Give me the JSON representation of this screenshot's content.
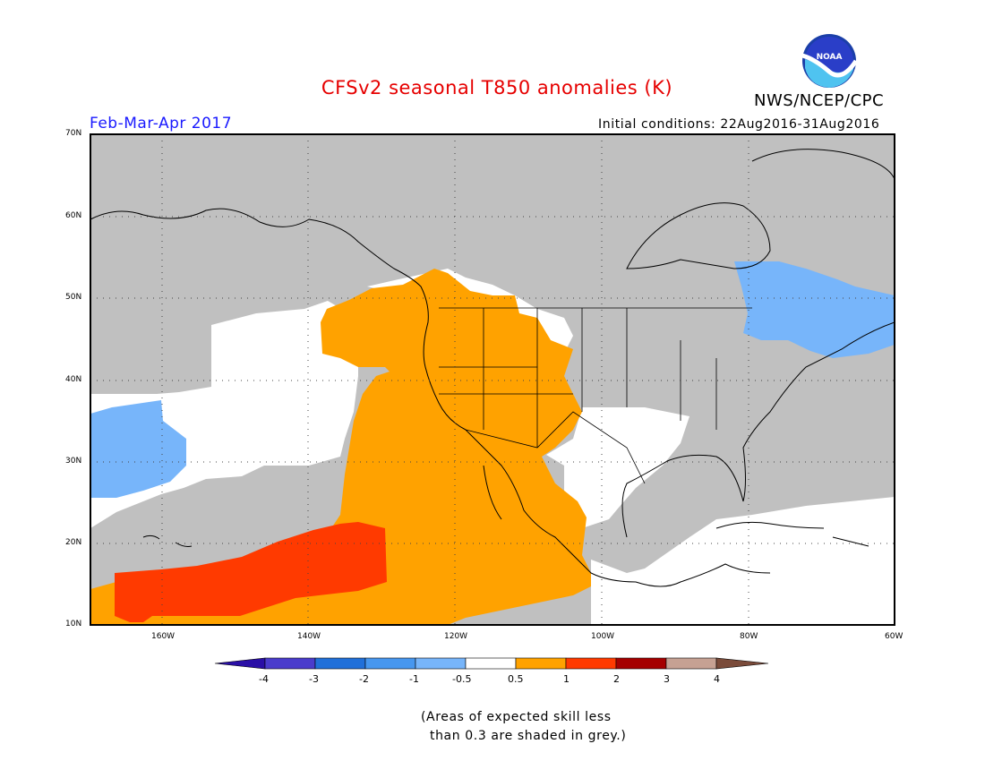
{
  "header": {
    "title": "CFSv2 seasonal T850 anomalies (K)",
    "org": "NWS/NCEP/CPC",
    "logo_text": "NOAA",
    "season": "Feb-Mar-Apr 2017",
    "initial_conditions": "Initial conditions: 22Aug2016-31Aug2016"
  },
  "map": {
    "latitude_labels": [
      "70N",
      "60N",
      "50N",
      "40N",
      "30N",
      "20N",
      "10N"
    ],
    "longitude_labels": [
      "160W",
      "140W",
      "120W",
      "100W",
      "80W",
      "60W"
    ],
    "colors": {
      "grey_low_skill": "#c0c0c0",
      "near_zero": "#ffffff",
      "neg_0_5_to_1": "#77b5fa",
      "pos_0_5_to_1": "#ffa200",
      "pos_1_to_2": "#ff3a00"
    }
  },
  "colorbar": {
    "labels": [
      "-4",
      "-3",
      "-2",
      "-1",
      "-0.5",
      "0.5",
      "1",
      "2",
      "3",
      "4"
    ],
    "colors": [
      "#2a0fa6",
      "#4a3ccc",
      "#2170d9",
      "#4797ef",
      "#77b5fa",
      "#ffffff",
      "#ffa200",
      "#ff3a00",
      "#a50000",
      "#c6a193",
      "#7a4b3a"
    ]
  },
  "footnote": {
    "line1": "(Areas of expected skill less",
    "line2": "than 0.3 are shaded in grey.)"
  }
}
